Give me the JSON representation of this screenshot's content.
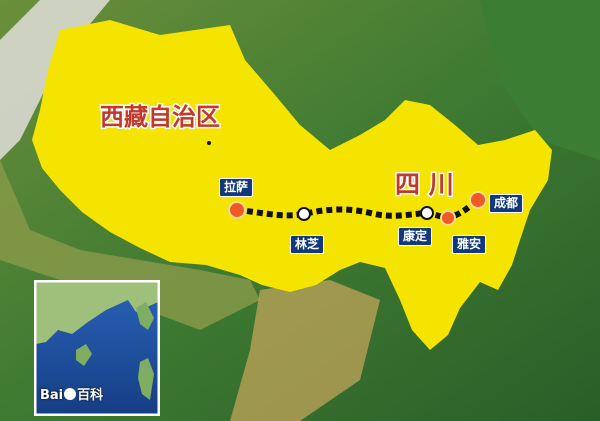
{
  "map": {
    "regions": {
      "tibet": "西藏自治区",
      "sichuan": "四 川"
    },
    "cities": {
      "lhasa": "拉萨",
      "nyingchi": "林芝",
      "kangding": "康定",
      "yaan": "雅安",
      "chengdu": "成都"
    }
  },
  "watermark": {
    "brand_left": "Bai",
    "brand_right": "百科"
  },
  "colors": {
    "highlight_region": "#f5e400",
    "route_line": "#111111",
    "terminal_city": "#f05a28",
    "label_bg": "#123a7a",
    "region_text": "#c0392b"
  }
}
